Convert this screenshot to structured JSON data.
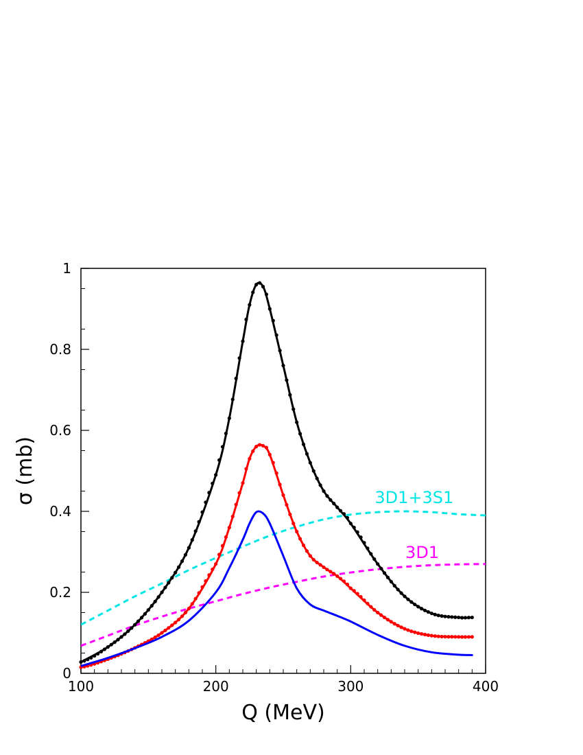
{
  "chart_data": {
    "type": "line",
    "xlabel": "Q (MeV)",
    "ylabel": "σ (mb)",
    "xlim": [
      100,
      400
    ],
    "ylim": [
      0,
      1
    ],
    "x_ticks": [
      100,
      200,
      300,
      400
    ],
    "x_tick_labels": [
      "100",
      "200",
      "300",
      "400"
    ],
    "y_ticks": [
      0,
      0.2,
      0.4,
      0.6,
      0.8,
      1
    ],
    "y_tick_labels": [
      "0",
      "0.2",
      "0.4",
      "0.6",
      "0.8",
      "1"
    ],
    "grid": false,
    "series": [
      {
        "name": "3D1+3S1",
        "color": "#00e5e5",
        "style": "dashed",
        "label_anchor": [
          347,
          0.42
        ],
        "x": [
          100,
          120,
          140,
          160,
          180,
          200,
          220,
          240,
          260,
          280,
          300,
          320,
          340,
          360,
          380,
          400
        ],
        "y": [
          0.12,
          0.155,
          0.19,
          0.222,
          0.255,
          0.285,
          0.313,
          0.34,
          0.362,
          0.38,
          0.392,
          0.398,
          0.4,
          0.398,
          0.393,
          0.39
        ]
      },
      {
        "name": "3D1",
        "color": "#ff00ff",
        "style": "dashed",
        "label_anchor": [
          353,
          0.285
        ],
        "x": [
          100,
          120,
          140,
          160,
          180,
          200,
          220,
          240,
          260,
          280,
          300,
          320,
          340,
          360,
          380,
          400
        ],
        "y": [
          0.068,
          0.093,
          0.118,
          0.14,
          0.16,
          0.178,
          0.196,
          0.212,
          0.226,
          0.239,
          0.249,
          0.257,
          0.263,
          0.267,
          0.269,
          0.27
        ]
      },
      {
        "color": "#000000",
        "style": "solid-markers",
        "x": [
          100,
          120,
          140,
          160,
          180,
          200,
          210,
          220,
          225,
          230,
          235,
          240,
          250,
          260,
          270,
          280,
          290,
          300,
          320,
          340,
          360,
          380,
          390
        ],
        "y": [
          0.028,
          0.065,
          0.12,
          0.2,
          0.31,
          0.49,
          0.63,
          0.82,
          0.91,
          0.96,
          0.955,
          0.9,
          0.76,
          0.62,
          0.52,
          0.45,
          0.41,
          0.37,
          0.27,
          0.19,
          0.148,
          0.138,
          0.138
        ]
      },
      {
        "color": "#ff0000",
        "style": "solid-markers",
        "x": [
          100,
          120,
          140,
          160,
          180,
          200,
          210,
          220,
          225,
          230,
          235,
          240,
          250,
          260,
          270,
          280,
          290,
          300,
          320,
          340,
          360,
          380,
          390
        ],
        "y": [
          0.015,
          0.035,
          0.063,
          0.1,
          0.16,
          0.27,
          0.36,
          0.47,
          0.53,
          0.56,
          0.562,
          0.54,
          0.44,
          0.35,
          0.29,
          0.262,
          0.24,
          0.21,
          0.15,
          0.11,
          0.093,
          0.09,
          0.09
        ]
      },
      {
        "color": "#0000ff",
        "style": "solid",
        "x": [
          100,
          120,
          140,
          160,
          180,
          200,
          210,
          220,
          225,
          230,
          235,
          240,
          250,
          260,
          270,
          280,
          290,
          300,
          320,
          340,
          360,
          380,
          390
        ],
        "y": [
          0.018,
          0.038,
          0.062,
          0.09,
          0.13,
          0.2,
          0.26,
          0.33,
          0.37,
          0.398,
          0.395,
          0.37,
          0.29,
          0.21,
          0.17,
          0.155,
          0.142,
          0.128,
          0.095,
          0.068,
          0.052,
          0.046,
          0.045
        ]
      }
    ]
  }
}
